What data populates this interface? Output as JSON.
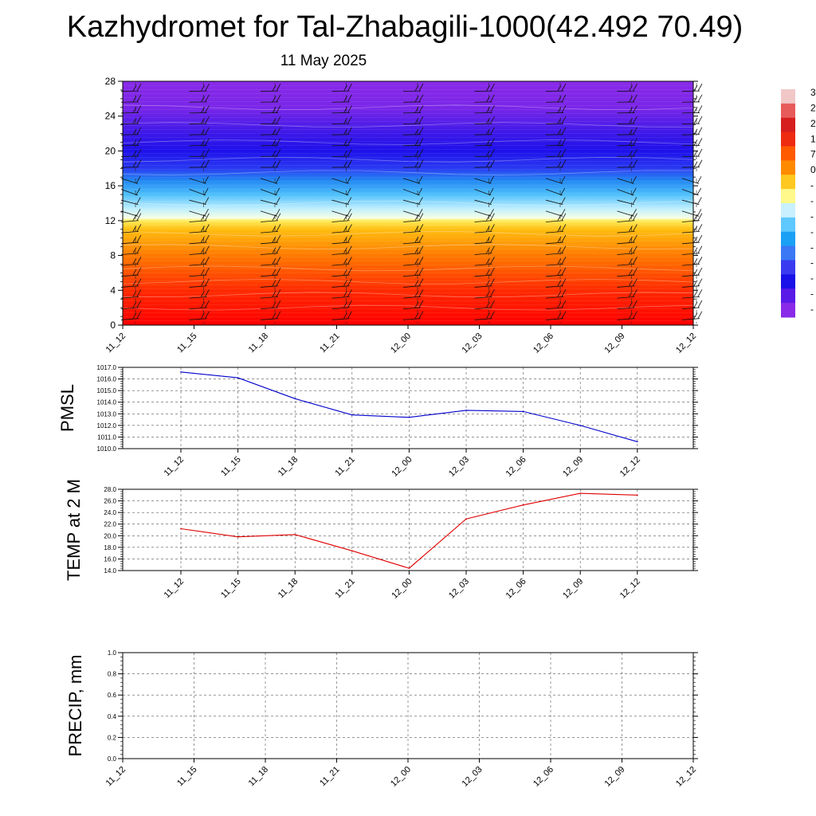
{
  "title": "Kazhydromet for Tal-Zhabagili-1000(42.492 70.49)",
  "subtitle": "11 May 2025",
  "time_labels": [
    "11_12",
    "11_15",
    "11_18",
    "11_21",
    "12_00",
    "12_03",
    "12_06",
    "12_09",
    "12_12"
  ],
  "colorbar": {
    "labels": [
      "3",
      "2",
      "2",
      "1",
      "7",
      "0",
      "-",
      "-",
      "-",
      "-",
      "-",
      "-",
      "-",
      "-",
      "-"
    ],
    "colors": [
      "#f2c7c7",
      "#e85b5b",
      "#d61e1e",
      "#ee2a0f",
      "#ff5a00",
      "#ff8a00",
      "#ffc820",
      "#fff88a",
      "#c8f0ff",
      "#5fc8ff",
      "#1aa0f5",
      "#3a78f5",
      "#3a3af0",
      "#1a10e8",
      "#5a1ae8",
      "#8a2ae8"
    ]
  },
  "chart_data": [
    {
      "type": "heatmap",
      "title": "",
      "ylabel": "",
      "ylim": [
        0,
        28
      ],
      "yticks": [
        0,
        4,
        8,
        12,
        16,
        20,
        24,
        28
      ],
      "x": [
        "11_12",
        "11_15",
        "11_18",
        "11_21",
        "12_00",
        "12_03",
        "12_06",
        "12_09",
        "12_12"
      ],
      "color_profile": [
        {
          "y": 0,
          "color": "#ff0000"
        },
        {
          "y": 4,
          "color": "#ff2a00"
        },
        {
          "y": 8,
          "color": "#ff7a00"
        },
        {
          "y": 11,
          "color": "#ffbe10"
        },
        {
          "y": 12,
          "color": "#ffee60"
        },
        {
          "y": 12.3,
          "color": "#f6ffe6"
        },
        {
          "y": 13.5,
          "color": "#b8ecff"
        },
        {
          "y": 15,
          "color": "#4ec0fb"
        },
        {
          "y": 16.6,
          "color": "#2288f2"
        },
        {
          "y": 18,
          "color": "#2a3af2"
        },
        {
          "y": 20,
          "color": "#1e10ea"
        },
        {
          "y": 22,
          "color": "#3c18e8"
        },
        {
          "y": 25,
          "color": "#7a26e8"
        },
        {
          "y": 28,
          "color": "#8a2ae8"
        }
      ]
    },
    {
      "type": "line",
      "ylabel": "PMSL",
      "ylim": [
        1010.0,
        1017.0
      ],
      "yticks": [
        "1010.0",
        "1011.0",
        "1012.0",
        "1013.0",
        "1014.0",
        "1015.0",
        "1016.0",
        "1017.0"
      ],
      "x": [
        "11_12",
        "11_15",
        "11_18",
        "11_21",
        "12_00",
        "12_03",
        "12_06",
        "12_09",
        "12_12"
      ],
      "series": [
        {
          "color": "#0000cc",
          "values": [
            1016.6,
            1016.1,
            1014.3,
            1012.9,
            1012.7,
            1013.3,
            1013.2,
            1012.0,
            1010.6
          ]
        }
      ]
    },
    {
      "type": "line",
      "ylabel": "TEMP at 2 M",
      "ylim": [
        14.0,
        28.0
      ],
      "yticks": [
        "14.0",
        "16.0",
        "18.0",
        "20.0",
        "22.0",
        "24.0",
        "26.0",
        "28.0"
      ],
      "x": [
        "11_12",
        "11_15",
        "11_18",
        "11_21",
        "12_00",
        "12_03",
        "12_06",
        "12_09",
        "12_12"
      ],
      "series": [
        {
          "color": "#e00000",
          "values": [
            21.2,
            19.8,
            20.2,
            17.4,
            14.4,
            22.9,
            25.3,
            27.3,
            27.0
          ]
        }
      ]
    },
    {
      "type": "line",
      "ylabel": "PRECIP, mm",
      "ylim": [
        0.0,
        1.0
      ],
      "yticks": [
        "0.0",
        "0.2",
        "0.4",
        "0.6",
        "0.8",
        "1.0"
      ],
      "x": [
        "11_12",
        "11_15",
        "11_18",
        "11_21",
        "12_00",
        "12_03",
        "12_06",
        "12_09",
        "12_12"
      ],
      "series": [
        {
          "color": "#007000",
          "values": [
            0,
            0,
            0,
            0,
            0,
            0,
            0,
            0,
            0
          ]
        }
      ]
    }
  ]
}
